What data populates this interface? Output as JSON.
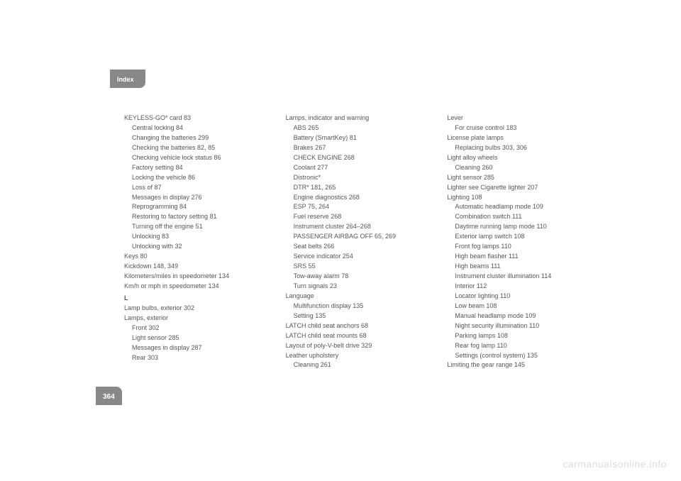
{
  "header": "Index",
  "page_number": "364",
  "watermark": "carmanualsonline.info",
  "columns": [
    [
      {
        "t": "KEYLESS-GO* card   83",
        "c": "entry"
      },
      {
        "t": "Central locking   84",
        "c": "entry sub"
      },
      {
        "t": "Changing the batteries   299",
        "c": "entry sub"
      },
      {
        "t": "Checking the batteries   82, 85",
        "c": "entry sub"
      },
      {
        "t": "Checking vehicle lock status   86",
        "c": "entry sub"
      },
      {
        "t": "Factory setting   84",
        "c": "entry sub"
      },
      {
        "t": "Locking the vehicle   86",
        "c": "entry sub"
      },
      {
        "t": "Loss of   87",
        "c": "entry sub"
      },
      {
        "t": "Messages in display   276",
        "c": "entry sub"
      },
      {
        "t": "Reprogramming   84",
        "c": "entry sub"
      },
      {
        "t": "Restoring to factory setting   81",
        "c": "entry sub"
      },
      {
        "t": "Turning off the engine   51",
        "c": "entry sub"
      },
      {
        "t": "Unlocking   83",
        "c": "entry sub"
      },
      {
        "t": "Unlocking with   32",
        "c": "entry sub"
      },
      {
        "t": "Keys   80",
        "c": "entry"
      },
      {
        "t": "Kickdown   148, 349",
        "c": "entry"
      },
      {
        "t": "Kilometers/miles in speedometer   134",
        "c": "entry"
      },
      {
        "t": "Km/h or mph in speedometer   134",
        "c": "entry"
      },
      {
        "t": "L",
        "c": "section-letter"
      },
      {
        "t": "Lamp bulbs, exterior   302",
        "c": "entry"
      },
      {
        "t": "Lamps, exterior",
        "c": "entry"
      },
      {
        "t": "Front   302",
        "c": "entry sub"
      },
      {
        "t": "Light sensor   285",
        "c": "entry sub"
      },
      {
        "t": "Messages in display   287",
        "c": "entry sub"
      },
      {
        "t": "Rear   303",
        "c": "entry sub"
      }
    ],
    [
      {
        "t": "Lamps, indicator and warning",
        "c": "entry"
      },
      {
        "t": "ABS   265",
        "c": "entry sub"
      },
      {
        "t": "Battery (SmartKey)   81",
        "c": "entry sub"
      },
      {
        "t": "Brakes   267",
        "c": "entry sub"
      },
      {
        "t": "CHECK ENGINE   268",
        "c": "entry sub"
      },
      {
        "t": "Coolant   277",
        "c": "entry sub"
      },
      {
        "t": "Distronic*",
        "c": "entry sub"
      },
      {
        "t": "DTR*   181, 265",
        "c": "entry sub"
      },
      {
        "t": "Engine diagnostics   268",
        "c": "entry sub"
      },
      {
        "t": "ESP   75, 264",
        "c": "entry sub"
      },
      {
        "t": "Fuel reserve   268",
        "c": "entry sub"
      },
      {
        "t": "Instrument cluster   264–268",
        "c": "entry sub"
      },
      {
        "t": "PASSENGER AIRBAG OFF   65, 269",
        "c": "entry sub"
      },
      {
        "t": "Seat belts   266",
        "c": "entry sub"
      },
      {
        "t": "Service indicator   254",
        "c": "entry sub"
      },
      {
        "t": "SRS   55",
        "c": "entry sub"
      },
      {
        "t": "Tow-away alarm   78",
        "c": "entry sub"
      },
      {
        "t": "Turn signals   23",
        "c": "entry sub"
      },
      {
        "t": "Language",
        "c": "entry"
      },
      {
        "t": "Multifunction display   135",
        "c": "entry sub"
      },
      {
        "t": "Setting   135",
        "c": "entry sub"
      },
      {
        "t": "LATCH child seat anchors   68",
        "c": "entry"
      },
      {
        "t": "LATCH child seat mounts   68",
        "c": "entry"
      },
      {
        "t": "Layout of poly-V-belt drive   329",
        "c": "entry"
      },
      {
        "t": "Leather upholstery",
        "c": "entry"
      },
      {
        "t": "Cleaning   261",
        "c": "entry sub"
      }
    ],
    [
      {
        "t": "Lever",
        "c": "entry"
      },
      {
        "t": "For cruise control   183",
        "c": "entry sub"
      },
      {
        "t": "License plate lamps",
        "c": "entry"
      },
      {
        "t": "Replacing bulbs   303, 306",
        "c": "entry sub"
      },
      {
        "t": "Light alloy wheels",
        "c": "entry"
      },
      {
        "t": "Cleaning   260",
        "c": "entry sub"
      },
      {
        "t": "Light sensor   285",
        "c": "entry"
      },
      {
        "t": "Lighter see Cigarette lighter   207",
        "c": "entry"
      },
      {
        "t": "Lighting   108",
        "c": "entry"
      },
      {
        "t": "Automatic headlamp mode   109",
        "c": "entry sub"
      },
      {
        "t": "Combination switch   111",
        "c": "entry sub"
      },
      {
        "t": "Daytime running lamp mode   110",
        "c": "entry sub"
      },
      {
        "t": "Exterior lamp switch   108",
        "c": "entry sub"
      },
      {
        "t": "Front fog lamps   110",
        "c": "entry sub"
      },
      {
        "t": "High beam flasher   111",
        "c": "entry sub"
      },
      {
        "t": "High beams   111",
        "c": "entry sub"
      },
      {
        "t": "Instrument cluster illumination   114",
        "c": "entry sub"
      },
      {
        "t": "Interior   112",
        "c": "entry sub"
      },
      {
        "t": "Locator lighting   110",
        "c": "entry sub"
      },
      {
        "t": "Low beam   108",
        "c": "entry sub"
      },
      {
        "t": "Manual headlamp mode   109",
        "c": "entry sub"
      },
      {
        "t": "Night security illumination   110",
        "c": "entry sub"
      },
      {
        "t": "Parking lamps   108",
        "c": "entry sub"
      },
      {
        "t": "Rear fog lamp   110",
        "c": "entry sub"
      },
      {
        "t": "Settings (control system)   135",
        "c": "entry sub"
      },
      {
        "t": "Limiting the gear range   145",
        "c": "entry"
      }
    ]
  ]
}
